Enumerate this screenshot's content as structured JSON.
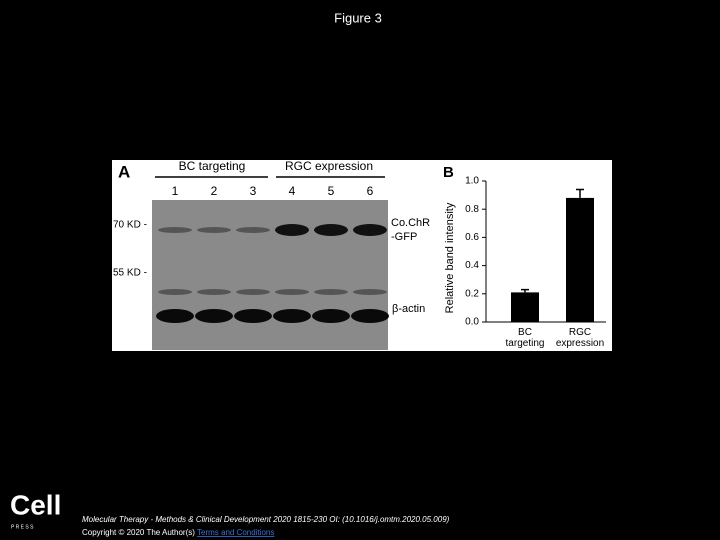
{
  "header": {
    "title": "Figure 3"
  },
  "panel_a": {
    "label": "A",
    "group_left": "BC targeting",
    "group_right": "RGC expression",
    "lanes": [
      "1",
      "2",
      "3",
      "4",
      "5",
      "6"
    ],
    "marker_70": "70 KD -",
    "marker_55": "55 KD -",
    "band_top_line1": "Co.ChR",
    "band_top_line2": "-GFP",
    "band_bottom": "β-actin"
  },
  "chart_data": {
    "type": "bar",
    "panel_label": "B",
    "y_label": "Relative band intensity",
    "categories": [
      "BC targeting",
      "RGC expression"
    ],
    "values": [
      0.21,
      0.88
    ],
    "errors": [
      0.02,
      0.06
    ],
    "color": "#000000",
    "ylim": [
      0,
      1.0
    ],
    "yticks": [
      {
        "value": 0,
        "label": "0.0"
      },
      {
        "value": 0.2,
        "label": "0.2"
      },
      {
        "value": 0.4,
        "label": "0.4"
      },
      {
        "value": 0.6,
        "label": "0.6"
      },
      {
        "value": 0.8,
        "label": "0.8"
      },
      {
        "value": 1.0,
        "label": "1.0"
      }
    ]
  },
  "footer": {
    "logo": "Cell",
    "logo_sub": "P R E S S",
    "citation": "Molecular Therapy - Methods & Clinical Development 2020 1815-230 OI: (10.1016/j.omtm.2020.05.009)",
    "copyright": "Copyright © 2020 The Author(s)",
    "link": "Terms and Conditions"
  }
}
